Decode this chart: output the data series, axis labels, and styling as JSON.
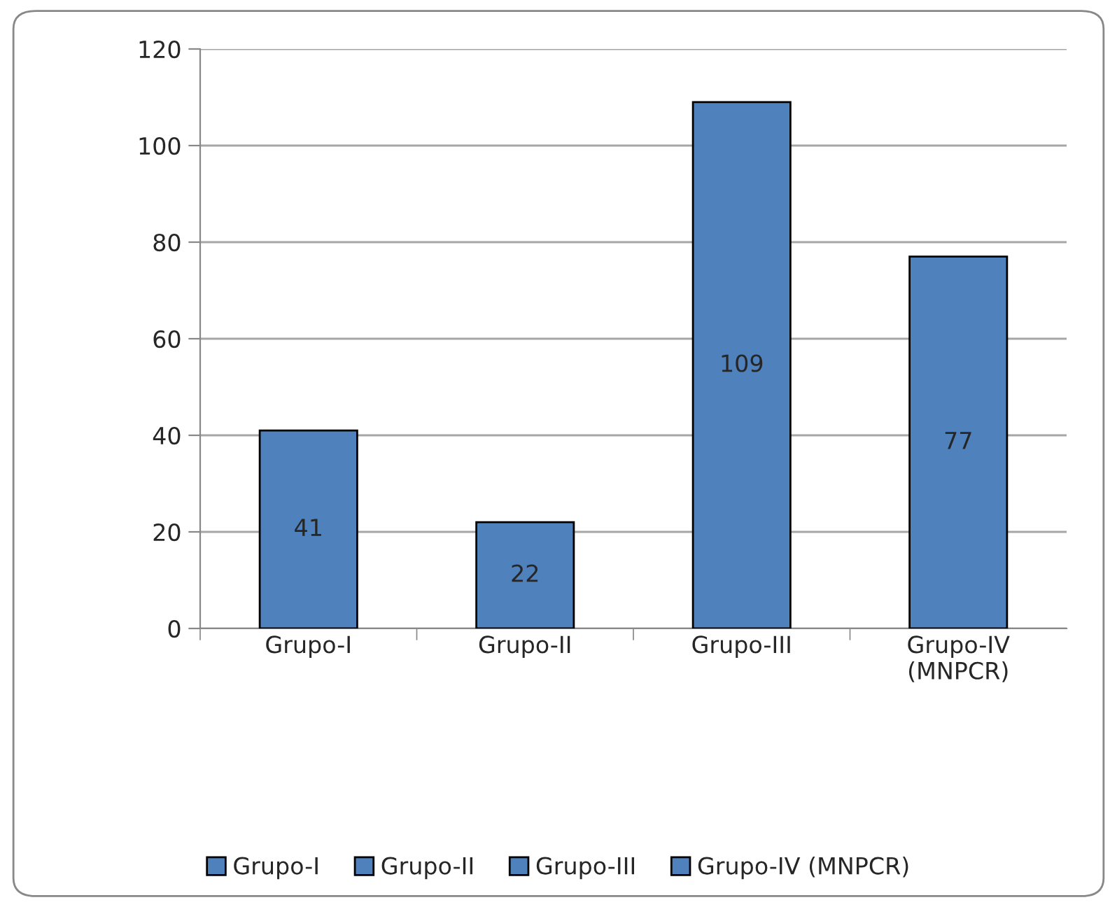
{
  "chart_data": {
    "type": "bar",
    "categories": [
      "Grupo-I",
      "Grupo-II",
      "Grupo-III",
      "Grupo-IV (MNPCR)"
    ],
    "series": [
      {
        "name": "Grupo-I",
        "color": "#4f81bd",
        "values": [
          41,
          null,
          null,
          null
        ]
      },
      {
        "name": "Grupo-II",
        "color": "#4f81bd",
        "values": [
          null,
          22,
          null,
          null
        ]
      },
      {
        "name": "Grupo-III",
        "color": "#4f81bd",
        "values": [
          null,
          null,
          109,
          null
        ]
      },
      {
        "name": "Grupo-IV (MNPCR)",
        "color": "#4f81bd",
        "values": [
          null,
          null,
          null,
          77
        ]
      }
    ],
    "ylim": [
      0,
      120
    ],
    "yticks": [
      0,
      20,
      40,
      60,
      80,
      100,
      120
    ],
    "grid": "y",
    "legend": "bottom",
    "data_labels": true
  }
}
